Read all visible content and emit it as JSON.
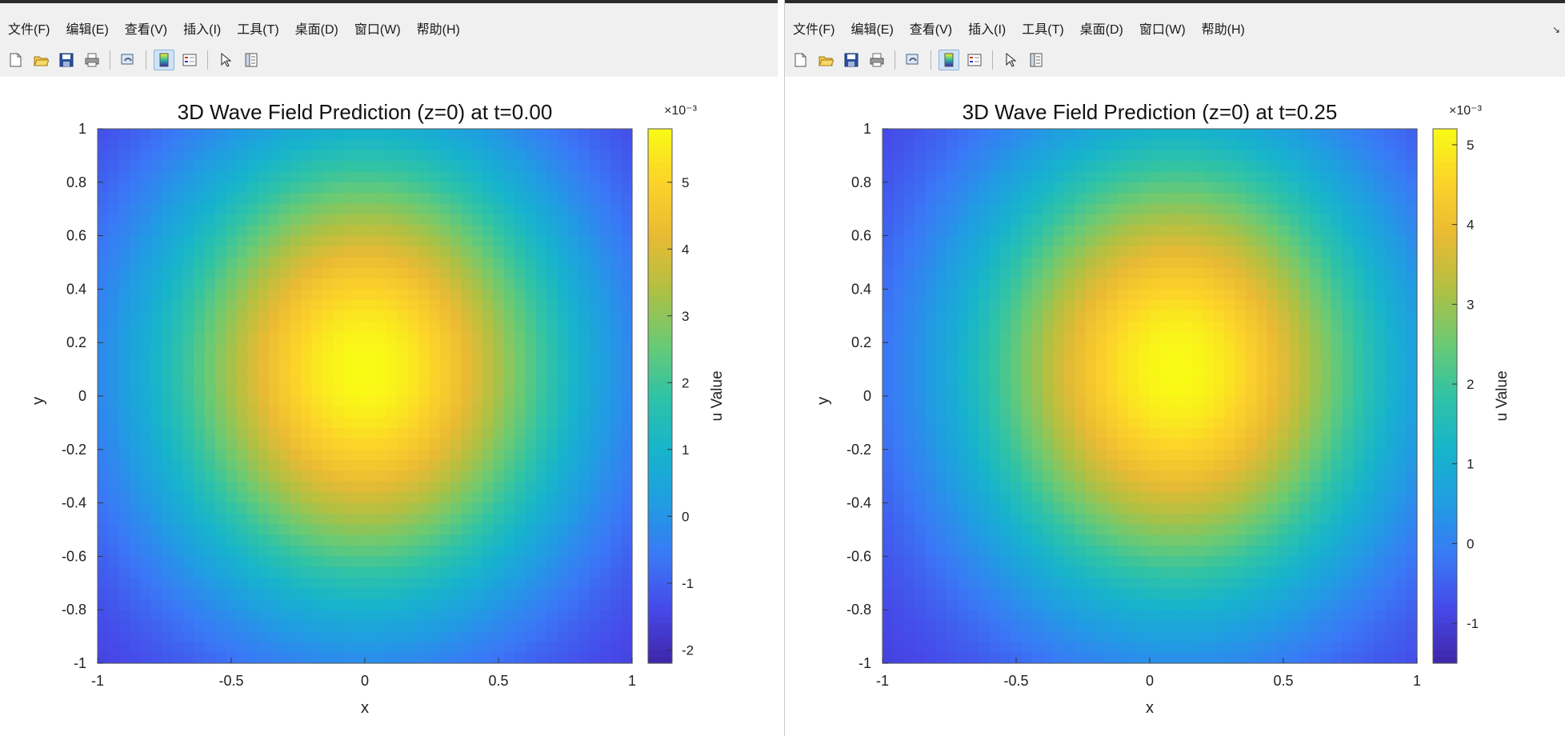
{
  "menus": {
    "left": [
      "文件(F)",
      "编辑(E)",
      "查看(V)",
      "插入(I)",
      "工具(T)",
      "桌面(D)",
      "窗口(W)",
      "帮助(H)"
    ],
    "right": [
      "文件(F)",
      "编辑(E)",
      "查看(V)",
      "插入(I)",
      "工具(T)",
      "桌面(D)",
      "窗口(W)",
      "帮助(H)"
    ]
  },
  "toolbar_icons": [
    "new-figure-icon",
    "open-file-icon",
    "save-icon",
    "print-icon",
    "link-plot-icon",
    "insert-colorbar-icon",
    "insert-legend-icon",
    "edit-plot-arrow-icon",
    "property-inspector-icon"
  ],
  "chart_data": [
    {
      "type": "heatmap",
      "title": "3D Wave Field Prediction (z=0) at t=0.00",
      "xlabel": "x",
      "ylabel": "y",
      "xlim": [
        -1,
        1
      ],
      "ylim": [
        -1,
        1
      ],
      "x_ticks": [
        "-1",
        "-0.5",
        "0",
        "0.5",
        "1"
      ],
      "y_ticks": [
        "1",
        "0.8",
        "0.6",
        "0.4",
        "0.2",
        "0",
        "-0.2",
        "-0.4",
        "-0.6",
        "-0.8",
        "-1"
      ],
      "colormap": "parula",
      "colorbar": {
        "label": "u Value",
        "exponent": "×10⁻³",
        "range": [
          -2.2,
          5.8
        ],
        "ticks": [
          -2,
          -1,
          0,
          1,
          2,
          3,
          4,
          5
        ],
        "tick_labels": [
          "-2",
          "-1",
          "0",
          "1",
          "2",
          "3",
          "4",
          "5"
        ]
      },
      "peak": {
        "x": 0.0,
        "y": 0.1,
        "value": 5.8
      }
    },
    {
      "type": "heatmap",
      "title": "3D Wave Field Prediction (z=0) at t=0.25",
      "xlabel": "x",
      "ylabel": "y",
      "xlim": [
        -1,
        1
      ],
      "ylim": [
        -1,
        1
      ],
      "x_ticks": [
        "-1",
        "-0.5",
        "0",
        "0.5",
        "1"
      ],
      "y_ticks": [
        "1",
        "0.8",
        "0.6",
        "0.4",
        "0.2",
        "0",
        "-0.2",
        "-0.4",
        "-0.6",
        "-0.8",
        "-1"
      ],
      "colormap": "parula",
      "colorbar": {
        "label": "u Value",
        "exponent": "×10⁻³",
        "range": [
          -1.5,
          5.2
        ],
        "ticks": [
          -1,
          0,
          1,
          2,
          3,
          4,
          5
        ],
        "tick_labels": [
          "-1",
          "0",
          "1",
          "2",
          "3",
          "4",
          "5"
        ]
      },
      "peak": {
        "x": 0.1,
        "y": 0.1,
        "value": 5.2
      }
    }
  ]
}
